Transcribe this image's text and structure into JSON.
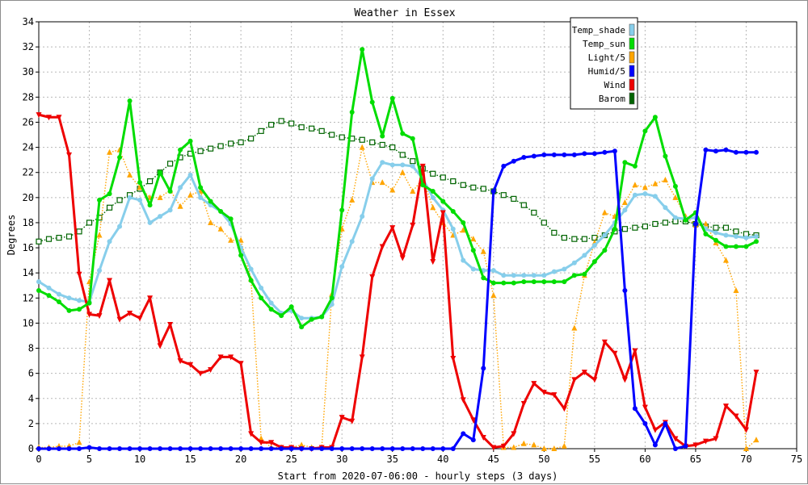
{
  "chart_data": {
    "type": "line",
    "title": "Weather in Essex",
    "xlabel": "Start from 2020-07-06:00 - hourly steps (3 days)",
    "ylabel": "Degrees",
    "xlim": [
      0,
      75
    ],
    "ylim": [
      0,
      34
    ],
    "xticks": [
      0,
      5,
      10,
      15,
      20,
      25,
      30,
      35,
      40,
      45,
      50,
      55,
      60,
      65,
      70,
      75
    ],
    "yticks": [
      0,
      2,
      4,
      6,
      8,
      10,
      12,
      14,
      16,
      18,
      20,
      22,
      24,
      26,
      28,
      30,
      32,
      34
    ],
    "grid": true,
    "legend_position": "top-right",
    "series": [
      {
        "name": "Temp_shade",
        "color": "#87ceeb",
        "marker": "circle",
        "line": "solid",
        "values": [
          13.3,
          12.8,
          12.3,
          12.0,
          11.8,
          11.7,
          14.2,
          16.5,
          17.7,
          20.0,
          19.8,
          18.0,
          18.5,
          19.0,
          20.8,
          21.8,
          20.0,
          19.4,
          18.9,
          17.9,
          16.0,
          14.3,
          12.8,
          11.6,
          10.8,
          11.0,
          10.4,
          10.4,
          10.5,
          11.5,
          14.5,
          16.5,
          18.5,
          21.5,
          22.8,
          22.6,
          22.6,
          22.5,
          21.5,
          20.0,
          19.0,
          17.5,
          15.0,
          14.3,
          14.2,
          14.2,
          13.8,
          13.8,
          13.8,
          13.8,
          13.8,
          14.1,
          14.3,
          14.8,
          15.4,
          16.2,
          17.0,
          18.0,
          19.0,
          20.2,
          20.3,
          20.1,
          19.2,
          18.4,
          18.3,
          18.4,
          17.5,
          17.2,
          17.0,
          16.9,
          16.8,
          16.9
        ]
      },
      {
        "name": "Temp_sun",
        "color": "#00dd00",
        "marker": "circle",
        "line": "solid",
        "values": [
          12.6,
          12.2,
          11.7,
          11.0,
          11.1,
          11.6,
          19.8,
          20.3,
          23.2,
          27.7,
          21.2,
          19.4,
          22.0,
          20.5,
          23.8,
          24.5,
          20.8,
          19.7,
          18.9,
          18.3,
          15.4,
          13.4,
          12.0,
          11.1,
          10.6,
          11.3,
          9.7,
          10.3,
          10.5,
          12.0,
          19.0,
          26.8,
          31.8,
          27.6,
          24.9,
          27.9,
          25.1,
          24.7,
          21.0,
          20.5,
          19.7,
          18.9,
          18.0,
          15.8,
          13.6,
          13.2,
          13.2,
          13.2,
          13.3,
          13.3,
          13.3,
          13.3,
          13.3,
          13.8,
          13.9,
          14.9,
          15.8,
          17.5,
          22.8,
          22.5,
          25.3,
          26.4,
          23.3,
          20.9,
          18.2,
          18.8,
          17.1,
          16.6,
          16.1,
          16.1,
          16.1,
          16.5
        ]
      },
      {
        "name": "Light/5",
        "color": "#ffa500",
        "marker": "triangle-up",
        "line": "dotted",
        "values": [
          0.1,
          0.1,
          0.2,
          0.2,
          0.5,
          13.3,
          17.0,
          23.6,
          23.8,
          21.8,
          20.8,
          20.0,
          20.0,
          20.6,
          19.3,
          20.2,
          20.5,
          18.0,
          17.5,
          16.6,
          16.6,
          13.5,
          0.8,
          0.1,
          0.1,
          0.1,
          0.3,
          0.1,
          0.1,
          12.3,
          17.5,
          19.8,
          24.0,
          21.2,
          21.2,
          20.6,
          22.0,
          20.5,
          21.5,
          19.2,
          18.0,
          17.0,
          17.4,
          16.7,
          15.7,
          12.2,
          0.1,
          0.1,
          0.4,
          0.3,
          0.0,
          0.0,
          0.2,
          9.6,
          13.8,
          16.4,
          18.8,
          18.5,
          19.6,
          21.0,
          20.8,
          21.1,
          21.4,
          20.0,
          18.5,
          17.8,
          17.9,
          16.4,
          15.0,
          12.6,
          0.0,
          0.7
        ]
      },
      {
        "name": "Humid/5",
        "color": "#0000ff",
        "marker": "circle",
        "line": "solid",
        "values": [
          0.0,
          0.0,
          0.0,
          0.0,
          0.0,
          0.1,
          0.0,
          0.0,
          0.0,
          0.0,
          0.0,
          0.0,
          0.0,
          0.0,
          0.0,
          0.0,
          0.0,
          0.0,
          0.0,
          0.0,
          0.0,
          0.0,
          0.0,
          0.0,
          0.0,
          0.0,
          0.0,
          0.0,
          0.0,
          0.0,
          0.0,
          0.0,
          0.0,
          0.0,
          0.0,
          0.0,
          0.0,
          0.0,
          0.0,
          0.0,
          0.0,
          0.0,
          1.2,
          0.7,
          6.4,
          20.5,
          22.5,
          22.9,
          23.2,
          23.3,
          23.4,
          23.4,
          23.4,
          23.4,
          23.5,
          23.5,
          23.6,
          23.7,
          12.6,
          3.2,
          2.0,
          0.3,
          2.0,
          0.0,
          0.2,
          17.9,
          23.8,
          23.7,
          23.8,
          23.6,
          23.6,
          23.6
        ]
      },
      {
        "name": "Wind",
        "color": "#ee0000",
        "marker": "triangle-down",
        "line": "solid",
        "values": [
          26.6,
          26.4,
          26.4,
          23.4,
          13.9,
          10.7,
          10.6,
          13.4,
          10.3,
          10.8,
          10.4,
          12.0,
          8.2,
          9.9,
          7.0,
          6.7,
          6.0,
          6.3,
          7.3,
          7.3,
          6.8,
          1.2,
          0.5,
          0.5,
          0.1,
          0.1,
          0.0,
          0.0,
          0.1,
          0.1,
          2.5,
          2.2,
          7.3,
          13.7,
          16.1,
          17.6,
          15.2,
          17.8,
          22.5,
          14.9,
          18.8,
          7.2,
          3.9,
          2.3,
          0.9,
          0.1,
          0.2,
          1.2,
          3.6,
          5.2,
          4.5,
          4.3,
          3.2,
          5.5,
          6.1,
          5.5,
          8.5,
          7.6,
          5.5,
          7.8,
          3.3,
          1.5,
          2.1,
          0.8,
          0.2,
          0.3,
          0.6,
          0.8,
          3.4,
          2.6,
          1.5,
          6.1
        ]
      },
      {
        "name": "Barom",
        "color": "#006400",
        "marker": "square",
        "line": "dotted",
        "values": [
          16.5,
          16.7,
          16.8,
          16.9,
          17.3,
          18.0,
          18.4,
          19.2,
          19.8,
          20.2,
          20.7,
          21.3,
          22.0,
          22.7,
          23.2,
          23.5,
          23.7,
          23.9,
          24.1,
          24.3,
          24.4,
          24.7,
          25.3,
          25.8,
          26.1,
          25.9,
          25.6,
          25.5,
          25.3,
          25.0,
          24.8,
          24.7,
          24.6,
          24.4,
          24.2,
          24.0,
          23.4,
          22.9,
          22.3,
          21.9,
          21.6,
          21.3,
          21.0,
          20.8,
          20.7,
          20.5,
          20.2,
          19.9,
          19.4,
          18.8,
          18.0,
          17.2,
          16.8,
          16.7,
          16.7,
          16.8,
          17.0,
          17.3,
          17.5,
          17.6,
          17.7,
          17.9,
          18.0,
          18.1,
          18.1,
          17.9,
          17.7,
          17.6,
          17.6,
          17.3,
          17.1,
          17.0
        ]
      }
    ]
  }
}
